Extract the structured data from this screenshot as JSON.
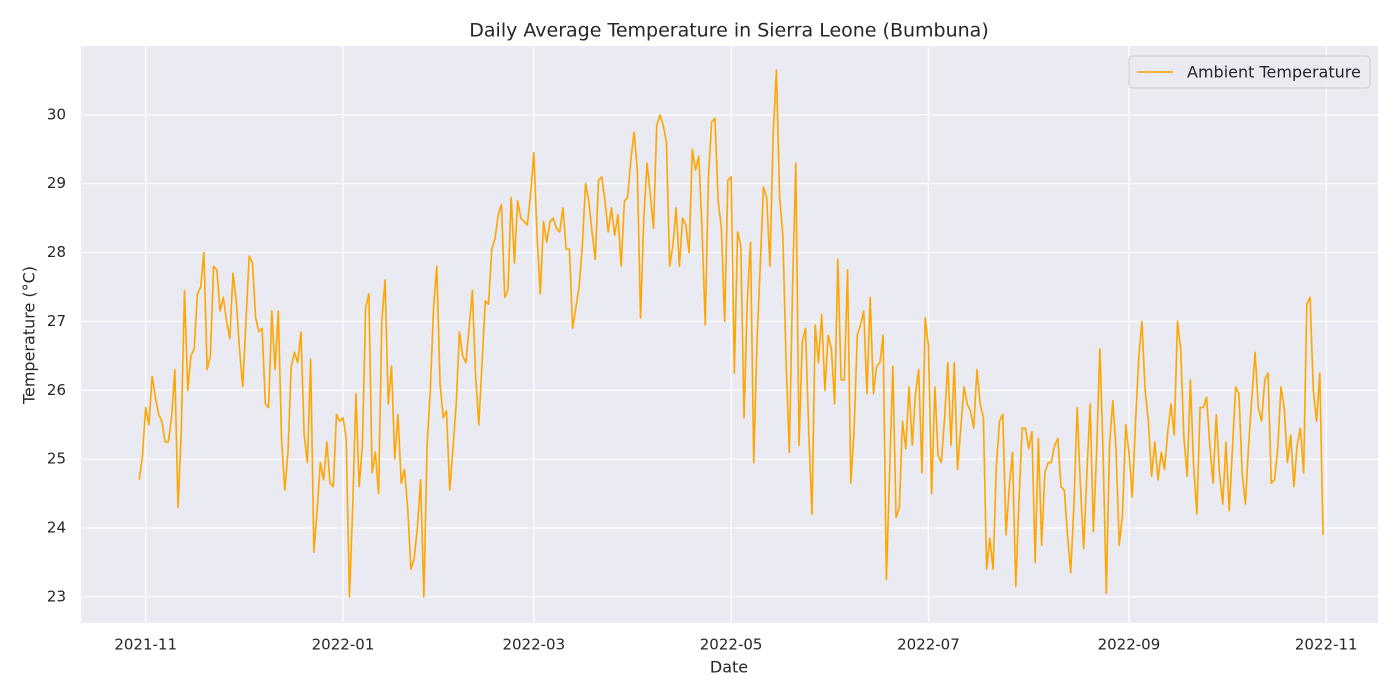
{
  "chart_data": {
    "type": "line",
    "title": "Daily Average Temperature in Sierra Leone (Bumbuna)",
    "xlabel": "Date",
    "ylabel": "Temperature (°C)",
    "x": [
      "2021-10-30",
      "2021-10-31",
      "2021-11-01",
      "2021-11-02",
      "2021-11-03",
      "2021-11-04",
      "2021-11-05",
      "2021-11-06",
      "2021-11-07",
      "2021-11-08",
      "2021-11-09",
      "2021-11-10",
      "2021-11-11",
      "2021-11-12",
      "2021-11-13",
      "2021-11-14",
      "2021-11-15",
      "2021-11-16",
      "2021-11-17",
      "2021-11-18",
      "2021-11-19",
      "2021-11-20",
      "2021-11-21",
      "2021-11-22",
      "2021-11-23",
      "2021-11-24",
      "2021-11-25",
      "2021-11-26",
      "2021-11-27",
      "2021-11-28",
      "2021-11-29",
      "2021-11-30",
      "2021-12-01",
      "2021-12-02",
      "2021-12-03",
      "2021-12-04",
      "2021-12-05",
      "2021-12-06",
      "2021-12-07",
      "2021-12-08",
      "2021-12-09",
      "2021-12-10",
      "2021-12-11",
      "2021-12-12",
      "2021-12-13",
      "2021-12-14",
      "2021-12-15",
      "2021-12-16",
      "2021-12-17",
      "2021-12-18",
      "2021-12-19",
      "2021-12-20",
      "2021-12-21",
      "2021-12-22",
      "2021-12-23",
      "2021-12-24",
      "2021-12-25",
      "2021-12-26",
      "2021-12-27",
      "2021-12-28",
      "2021-12-29",
      "2021-12-30",
      "2021-12-31",
      "2022-01-01",
      "2022-01-02",
      "2022-01-03",
      "2022-01-04",
      "2022-01-05",
      "2022-01-06",
      "2022-01-07",
      "2022-01-08",
      "2022-01-09",
      "2022-01-10",
      "2022-01-11",
      "2022-01-12",
      "2022-01-13",
      "2022-01-14",
      "2022-01-15",
      "2022-01-16",
      "2022-01-17",
      "2022-01-18",
      "2022-01-19",
      "2022-01-20",
      "2022-01-21",
      "2022-01-22",
      "2022-01-23",
      "2022-01-24",
      "2022-01-25",
      "2022-01-26",
      "2022-01-27",
      "2022-01-28",
      "2022-01-29",
      "2022-01-30",
      "2022-01-31",
      "2022-02-01",
      "2022-02-02",
      "2022-02-03",
      "2022-02-04",
      "2022-02-05",
      "2022-02-06",
      "2022-02-07",
      "2022-02-08",
      "2022-02-09",
      "2022-02-10",
      "2022-02-11",
      "2022-02-12",
      "2022-02-13",
      "2022-02-14",
      "2022-02-15",
      "2022-02-16",
      "2022-02-17",
      "2022-02-18",
      "2022-02-19",
      "2022-02-20",
      "2022-02-21",
      "2022-02-22",
      "2022-02-23",
      "2022-02-24",
      "2022-02-25",
      "2022-02-26",
      "2022-02-27",
      "2022-02-28",
      "2022-03-01",
      "2022-03-02",
      "2022-03-03",
      "2022-03-04",
      "2022-03-05",
      "2022-03-06",
      "2022-03-07",
      "2022-03-08",
      "2022-03-09",
      "2022-03-10",
      "2022-03-11",
      "2022-03-12",
      "2022-03-13",
      "2022-03-14",
      "2022-03-15",
      "2022-03-16",
      "2022-03-17",
      "2022-03-18",
      "2022-03-19",
      "2022-03-20",
      "2022-03-21",
      "2022-03-22",
      "2022-03-23",
      "2022-03-24",
      "2022-03-25",
      "2022-03-26",
      "2022-03-27",
      "2022-03-28",
      "2022-03-29",
      "2022-03-30",
      "2022-03-31",
      "2022-04-01",
      "2022-04-02",
      "2022-04-03",
      "2022-04-04",
      "2022-04-05",
      "2022-04-06",
      "2022-04-07",
      "2022-04-08",
      "2022-04-09",
      "2022-04-10",
      "2022-04-11",
      "2022-04-12",
      "2022-04-13",
      "2022-04-14",
      "2022-04-15",
      "2022-04-16",
      "2022-04-17",
      "2022-04-18",
      "2022-04-19",
      "2022-04-20",
      "2022-04-21",
      "2022-04-22",
      "2022-04-23",
      "2022-04-24",
      "2022-04-25",
      "2022-04-26",
      "2022-04-27",
      "2022-04-28",
      "2022-04-29",
      "2022-04-30",
      "2022-05-01",
      "2022-05-02",
      "2022-05-03",
      "2022-05-04",
      "2022-05-05",
      "2022-05-06",
      "2022-05-07",
      "2022-05-08",
      "2022-05-09",
      "2022-05-10",
      "2022-05-11",
      "2022-05-12",
      "2022-05-13",
      "2022-05-14",
      "2022-05-15",
      "2022-05-16",
      "2022-05-17",
      "2022-05-18",
      "2022-05-19",
      "2022-05-20",
      "2022-05-21",
      "2022-05-22",
      "2022-05-23",
      "2022-05-24",
      "2022-05-25",
      "2022-05-26",
      "2022-05-27",
      "2022-05-28",
      "2022-05-29",
      "2022-05-30",
      "2022-05-31",
      "2022-06-01",
      "2022-06-02",
      "2022-06-03",
      "2022-06-04",
      "2022-06-05",
      "2022-06-06",
      "2022-06-07",
      "2022-06-08",
      "2022-06-09",
      "2022-06-10",
      "2022-06-11",
      "2022-06-12",
      "2022-06-13",
      "2022-06-14",
      "2022-06-15",
      "2022-06-16",
      "2022-06-17",
      "2022-06-18",
      "2022-06-19",
      "2022-06-20",
      "2022-06-21",
      "2022-06-22",
      "2022-06-23",
      "2022-06-24",
      "2022-06-25",
      "2022-06-26",
      "2022-06-27",
      "2022-06-28",
      "2022-06-29",
      "2022-06-30",
      "2022-07-01",
      "2022-07-02",
      "2022-07-03",
      "2022-07-04",
      "2022-07-05",
      "2022-07-06",
      "2022-07-07",
      "2022-07-08",
      "2022-07-09",
      "2022-07-10",
      "2022-07-11",
      "2022-07-12",
      "2022-07-13",
      "2022-07-14",
      "2022-07-15",
      "2022-07-16",
      "2022-07-17",
      "2022-07-18",
      "2022-07-19",
      "2022-07-20",
      "2022-07-21",
      "2022-07-22",
      "2022-07-23",
      "2022-07-24",
      "2022-07-25",
      "2022-07-26",
      "2022-07-27",
      "2022-07-28",
      "2022-07-29",
      "2022-07-30",
      "2022-07-31",
      "2022-08-01",
      "2022-08-02",
      "2022-08-03",
      "2022-08-04",
      "2022-08-05",
      "2022-08-06",
      "2022-08-07",
      "2022-08-08",
      "2022-08-09",
      "2022-08-10",
      "2022-08-11",
      "2022-08-12",
      "2022-08-13",
      "2022-08-14",
      "2022-08-15",
      "2022-08-16",
      "2022-08-17",
      "2022-08-18",
      "2022-08-19",
      "2022-08-20",
      "2022-08-21",
      "2022-08-22",
      "2022-08-23",
      "2022-08-24",
      "2022-08-25",
      "2022-08-26",
      "2022-08-27",
      "2022-08-28",
      "2022-08-29",
      "2022-08-30",
      "2022-08-31",
      "2022-09-01",
      "2022-09-02",
      "2022-09-03",
      "2022-09-04",
      "2022-09-05",
      "2022-09-06",
      "2022-09-07",
      "2022-09-08",
      "2022-09-09",
      "2022-09-10",
      "2022-09-11",
      "2022-09-12",
      "2022-09-13",
      "2022-09-14",
      "2022-09-15",
      "2022-09-16",
      "2022-09-17",
      "2022-09-18",
      "2022-09-19",
      "2022-09-20",
      "2022-09-21",
      "2022-09-22",
      "2022-09-23",
      "2022-09-24",
      "2022-09-25",
      "2022-09-26",
      "2022-09-27",
      "2022-09-28",
      "2022-09-29",
      "2022-09-30",
      "2022-10-01",
      "2022-10-02",
      "2022-10-03",
      "2022-10-04",
      "2022-10-05",
      "2022-10-06",
      "2022-10-07",
      "2022-10-08",
      "2022-10-09",
      "2022-10-10",
      "2022-10-11",
      "2022-10-12",
      "2022-10-13",
      "2022-10-14",
      "2022-10-15",
      "2022-10-16",
      "2022-10-17",
      "2022-10-18",
      "2022-10-19",
      "2022-10-20",
      "2022-10-21",
      "2022-10-22",
      "2022-10-23",
      "2022-10-24",
      "2022-10-25",
      "2022-10-26",
      "2022-10-27",
      "2022-10-28",
      "2022-10-29",
      "2022-10-30",
      "2022-10-31"
    ],
    "series": [
      {
        "name": "Ambient Temperature",
        "color": "#ffa500",
        "values": [
          24.7,
          25.05,
          25.75,
          25.5,
          26.2,
          25.9,
          25.65,
          25.55,
          25.25,
          25.25,
          25.6,
          26.3,
          24.3,
          25.4,
          27.45,
          26.0,
          26.5,
          26.6,
          27.4,
          27.5,
          28.0,
          26.3,
          26.5,
          27.8,
          27.75,
          27.15,
          27.35,
          27.0,
          26.75,
          27.7,
          27.3,
          26.6,
          26.05,
          27.0,
          27.95,
          27.85,
          27.05,
          26.85,
          26.9,
          25.8,
          25.75,
          27.15,
          26.3,
          27.15,
          25.3,
          24.55,
          25.1,
          26.35,
          26.55,
          26.4,
          26.85,
          25.35,
          24.95,
          26.45,
          23.65,
          24.25,
          24.95,
          24.7,
          25.25,
          24.65,
          24.6,
          25.65,
          25.55,
          25.6,
          25.3,
          23.0,
          24.3,
          25.95,
          24.6,
          25.2,
          27.2,
          27.4,
          24.8,
          25.1,
          24.5,
          27.0,
          27.6,
          25.8,
          26.35,
          25.0,
          25.65,
          24.65,
          24.85,
          24.3,
          23.4,
          23.55,
          24.0,
          24.7,
          23.0,
          25.2,
          26.0,
          27.2,
          27.8,
          26.1,
          25.6,
          25.7,
          24.55,
          25.15,
          25.8,
          26.85,
          26.5,
          26.4,
          26.9,
          27.45,
          26.2,
          25.5,
          26.4,
          27.3,
          27.25,
          28.05,
          28.2,
          28.55,
          28.7,
          27.35,
          27.45,
          28.8,
          27.85,
          28.75,
          28.5,
          28.45,
          28.4,
          28.85,
          29.45,
          28.25,
          27.4,
          28.45,
          28.15,
          28.45,
          28.5,
          28.35,
          28.3,
          28.65,
          28.05,
          28.05,
          26.9,
          27.2,
          27.5,
          28.1,
          29.0,
          28.75,
          28.3,
          27.9,
          29.05,
          29.1,
          28.75,
          28.3,
          28.65,
          28.25,
          28.55,
          27.8,
          28.75,
          28.8,
          29.35,
          29.75,
          29.2,
          27.05,
          28.5,
          29.3,
          28.85,
          28.35,
          29.85,
          30.0,
          29.85,
          29.6,
          27.8,
          28.1,
          28.65,
          27.8,
          28.5,
          28.4,
          28.0,
          29.5,
          29.2,
          29.4,
          28.35,
          26.95,
          29.1,
          29.9,
          29.95,
          28.75,
          28.35,
          27.0,
          29.05,
          29.1,
          26.25,
          28.3,
          28.1,
          25.6,
          27.3,
          28.15,
          24.95,
          26.7,
          27.8,
          28.95,
          28.8,
          27.8,
          29.7,
          30.65,
          28.8,
          28.25,
          26.4,
          25.1,
          27.5,
          29.3,
          25.2,
          26.7,
          26.9,
          25.4,
          24.2,
          26.95,
          26.4,
          27.1,
          26.0,
          26.8,
          26.6,
          25.8,
          27.9,
          26.15,
          26.15,
          27.75,
          24.65,
          25.4,
          26.8,
          26.95,
          27.15,
          25.95,
          27.35,
          25.95,
          26.35,
          26.4,
          26.8,
          23.25,
          24.8,
          26.35,
          24.15,
          24.3,
          25.55,
          25.15,
          26.05,
          25.2,
          25.95,
          26.3,
          24.8,
          27.05,
          26.65,
          24.5,
          26.05,
          25.05,
          24.95,
          25.6,
          26.4,
          25.2,
          26.4,
          24.85,
          25.45,
          26.05,
          25.8,
          25.7,
          25.45,
          26.3,
          25.8,
          25.6,
          23.4,
          23.85,
          23.4,
          24.9,
          25.55,
          25.65,
          23.9,
          24.6,
          25.1,
          23.15,
          24.4,
          25.45,
          25.45,
          25.15,
          25.4,
          23.5,
          25.3,
          23.75,
          24.8,
          24.95,
          24.95,
          25.2,
          25.3,
          24.6,
          24.55,
          23.9,
          23.35,
          24.35,
          25.75,
          24.6,
          23.7,
          24.8,
          25.8,
          23.95,
          25.1,
          26.6,
          25.1,
          23.05,
          25.2,
          25.85,
          25.15,
          23.75,
          24.2,
          25.5,
          25.1,
          24.45,
          25.5,
          26.45,
          27.0,
          26.0,
          25.55,
          24.75,
          25.25,
          24.7,
          25.1,
          24.85,
          25.4,
          25.8,
          25.35,
          27.0,
          26.6,
          25.3,
          24.75,
          26.15,
          24.9,
          24.2,
          25.75,
          25.75,
          25.9,
          25.2,
          24.65,
          25.65,
          24.8,
          24.35,
          25.25,
          24.25,
          25.15,
          26.05,
          25.95,
          24.8,
          24.35,
          25.2,
          25.9,
          26.55,
          25.75,
          25.55,
          26.15,
          26.25,
          24.65,
          24.7,
          25.15,
          26.05,
          25.75,
          24.95,
          25.35,
          24.6,
          25.2,
          25.45,
          24.8,
          27.25,
          27.35,
          26.0,
          25.55,
          26.25,
          23.9
        ]
      }
    ],
    "xlim": [
      "2021-10-12",
      "2022-11-17"
    ],
    "xticks": [
      "2021-11",
      "2022-01",
      "2022-03",
      "2022-05",
      "2022-07",
      "2022-09",
      "2022-11"
    ],
    "ylim": [
      22.62,
      31.0
    ],
    "yticks": [
      23,
      24,
      25,
      26,
      27,
      28,
      29,
      30
    ],
    "grid": true,
    "legend": "upper right"
  }
}
